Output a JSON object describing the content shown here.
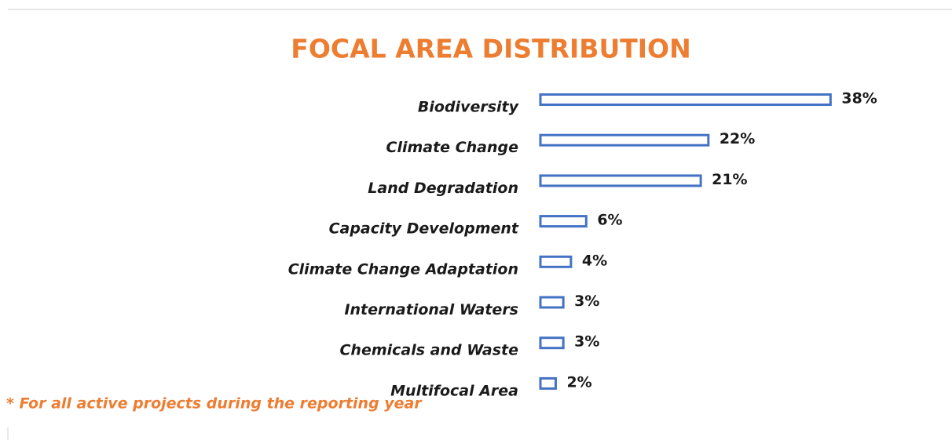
{
  "chart_data": {
    "type": "bar",
    "orientation": "horizontal",
    "title": "FOCAL AREA DISTRIBUTION",
    "categories": [
      "Biodiversity",
      "Climate Change",
      "Land Degradation",
      "Capacity Development",
      "Climate Change Adaptation",
      "International Waters",
      "Chemicals and Waste",
      "Multifocal Area"
    ],
    "values": [
      38,
      22,
      21,
      6,
      4,
      3,
      3,
      2
    ],
    "value_labels": [
      "38%",
      "22%",
      "21%",
      "6%",
      "4%",
      "3%",
      "3%",
      "2%"
    ],
    "color": "#4472C4",
    "annotation": "* For all active projects during the reporting year"
  }
}
